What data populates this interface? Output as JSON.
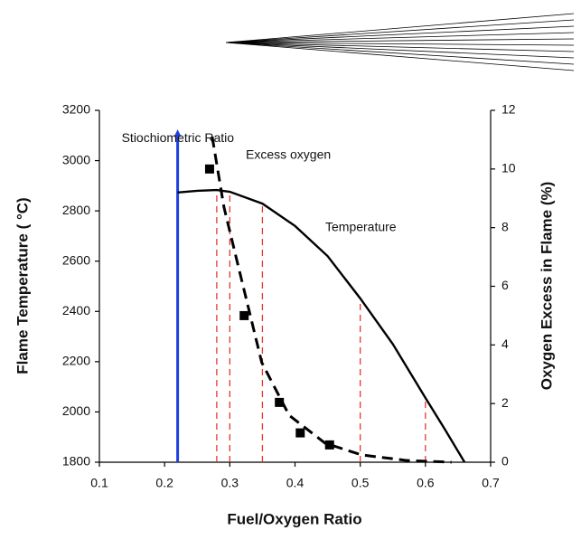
{
  "chart_data": {
    "type": "line",
    "xlabel": "Fuel/Oxygen Ratio",
    "ylabel": "Flame Temperature ( °C)",
    "y2label": "Oxygen Excess in Flame (%)",
    "xlim": [
      0.1,
      0.7
    ],
    "xticks": [
      0.1,
      0.2,
      0.3,
      0.4,
      0.5,
      0.6,
      0.7
    ],
    "ylim": [
      1800,
      3200
    ],
    "yticks": [
      1800,
      2000,
      2200,
      2400,
      2600,
      2800,
      3000,
      3200
    ],
    "y2lim": [
      0,
      12
    ],
    "y2ticks": [
      0,
      2,
      4,
      6,
      8,
      10,
      12
    ],
    "series": [
      {
        "name": "Temperature",
        "color": "#000000",
        "style": "solid",
        "x": [
          0.22,
          0.25,
          0.28,
          0.3,
          0.35,
          0.4,
          0.45,
          0.5,
          0.55,
          0.6,
          0.63,
          0.66
        ],
        "values": [
          2873,
          2880,
          2883,
          2876,
          2829,
          2740,
          2620,
          2452,
          2270,
          2056,
          1930,
          1800
        ]
      },
      {
        "name": "Excess oxygen",
        "color": "#000000",
        "style": "dashed",
        "axis": "y2",
        "x": [
          0.273,
          0.291,
          0.315,
          0.349,
          0.391,
          0.446,
          0.502,
          0.571,
          0.64
        ],
        "values": [
          11.1,
          8.7,
          6.5,
          3.4,
          1.6,
          0.65,
          0.25,
          0.06,
          0
        ]
      },
      {
        "color": "#000000",
        "style": "markers",
        "axis": "y2",
        "x": [
          0.269,
          0.322,
          0.376,
          0.408,
          0.453
        ],
        "values": [
          10.0,
          5.0,
          2.04,
          1.0,
          0.59
        ]
      }
    ],
    "reference_lines": [
      {
        "x": 0.28,
        "y": 2883,
        "color": "#e8372f"
      },
      {
        "x": 0.3,
        "y": 2876,
        "color": "#e8372f"
      },
      {
        "x": 0.35,
        "y": 2829,
        "color": "#e8372f"
      },
      {
        "x": 0.5,
        "y": 2452,
        "color": "#e8372f"
      },
      {
        "x": 0.6,
        "y": 2056,
        "color": "#e8372f"
      }
    ],
    "annotation": {
      "text": "Stiochiometric Ratio",
      "x": 0.22,
      "y": 3124,
      "color": "#1f3fe0"
    }
  }
}
